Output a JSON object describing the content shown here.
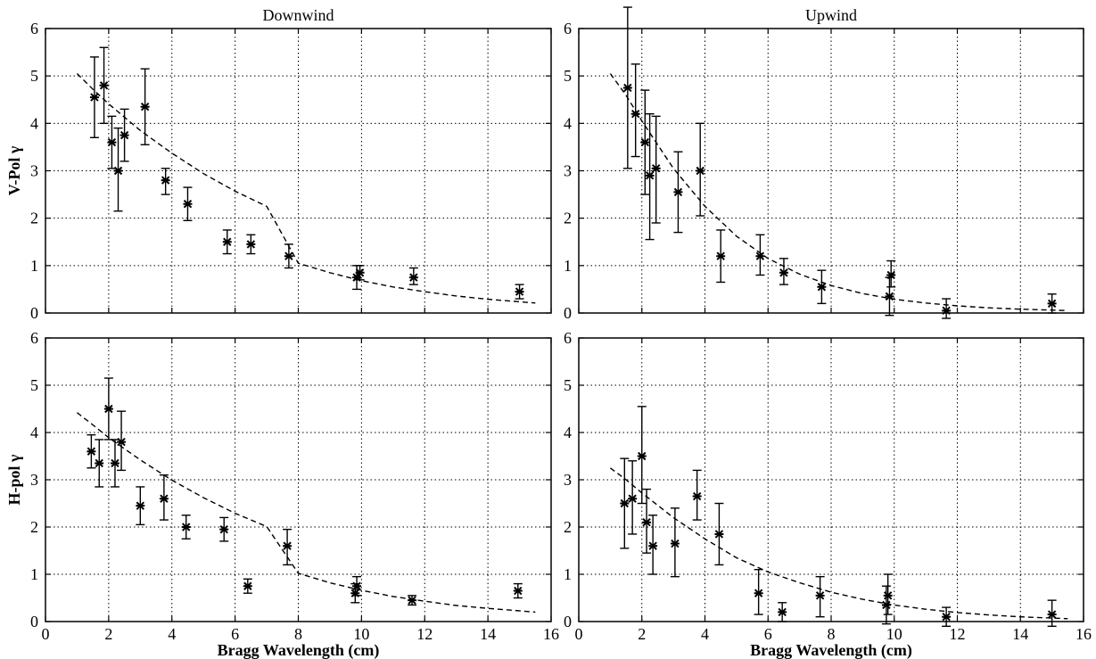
{
  "chart_data": [
    {
      "type": "scatter",
      "title": "Downwind",
      "xlabel": "",
      "ylabel": "V-Pol γ",
      "xlim": [
        0,
        16
      ],
      "ylim": [
        0,
        6
      ],
      "xticks": [
        0,
        2,
        4,
        6,
        8,
        10,
        12,
        14,
        16
      ],
      "yticks": [
        0,
        1,
        2,
        3,
        4,
        5,
        6
      ],
      "show_xticklabels": false,
      "grid": true,
      "points": [
        {
          "x": 1.55,
          "y": 4.55,
          "lo": 3.7,
          "hi": 5.4
        },
        {
          "x": 1.85,
          "y": 4.8,
          "lo": 4.0,
          "hi": 5.6
        },
        {
          "x": 2.1,
          "y": 3.6,
          "lo": 3.05,
          "hi": 4.15
        },
        {
          "x": 2.3,
          "y": 3.0,
          "lo": 2.15,
          "hi": 3.9
        },
        {
          "x": 2.5,
          "y": 3.75,
          "lo": 3.2,
          "hi": 4.3
        },
        {
          "x": 3.15,
          "y": 4.35,
          "lo": 3.55,
          "hi": 5.15
        },
        {
          "x": 3.8,
          "y": 2.8,
          "lo": 2.5,
          "hi": 3.05
        },
        {
          "x": 4.5,
          "y": 2.3,
          "lo": 1.95,
          "hi": 2.65
        },
        {
          "x": 5.75,
          "y": 1.5,
          "lo": 1.25,
          "hi": 1.75
        },
        {
          "x": 6.5,
          "y": 1.45,
          "lo": 1.25,
          "hi": 1.65
        },
        {
          "x": 7.7,
          "y": 1.2,
          "lo": 0.95,
          "hi": 1.45
        },
        {
          "x": 9.85,
          "y": 0.75,
          "lo": 0.5,
          "hi": 1.0
        },
        {
          "x": 9.95,
          "y": 0.85,
          "lo": 0.7,
          "hi": 1.0
        },
        {
          "x": 11.65,
          "y": 0.75,
          "lo": 0.6,
          "hi": 0.95
        },
        {
          "x": 15.0,
          "y": 0.45,
          "lo": 0.3,
          "hi": 0.6
        }
      ],
      "fit": [
        [
          1.0,
          5.05
        ],
        [
          1.5,
          4.72
        ],
        [
          2.0,
          4.41
        ],
        [
          3.0,
          3.85
        ],
        [
          4.0,
          3.37
        ],
        [
          5.0,
          2.94
        ],
        [
          6.0,
          2.57
        ],
        [
          7.0,
          2.25
        ],
        [
          8.0,
          1.05
        ],
        [
          9.0,
          0.85
        ],
        [
          10.0,
          0.68
        ],
        [
          11.0,
          0.55
        ],
        [
          12.0,
          0.45
        ],
        [
          13.0,
          0.36
        ],
        [
          14.0,
          0.29
        ],
        [
          15.5,
          0.21
        ]
      ]
    },
    {
      "type": "scatter",
      "title": "Upwind",
      "xlabel": "",
      "ylabel": "",
      "xlim": [
        0,
        16
      ],
      "ylim": [
        0,
        6
      ],
      "xticks": [
        0,
        2,
        4,
        6,
        8,
        10,
        12,
        14,
        16
      ],
      "yticks": [
        0,
        1,
        2,
        3,
        4,
        5,
        6
      ],
      "show_xticklabels": false,
      "grid": true,
      "points": [
        {
          "x": 1.55,
          "y": 4.75,
          "lo": 3.05,
          "hi": 6.45
        },
        {
          "x": 1.8,
          "y": 4.2,
          "lo": 3.3,
          "hi": 5.25
        },
        {
          "x": 2.1,
          "y": 3.6,
          "lo": 2.5,
          "hi": 4.7
        },
        {
          "x": 2.25,
          "y": 2.9,
          "lo": 1.55,
          "hi": 4.2
        },
        {
          "x": 2.45,
          "y": 3.05,
          "lo": 1.9,
          "hi": 4.15
        },
        {
          "x": 3.15,
          "y": 2.55,
          "lo": 1.7,
          "hi": 3.4
        },
        {
          "x": 3.85,
          "y": 3.0,
          "lo": 2.05,
          "hi": 4.0
        },
        {
          "x": 4.5,
          "y": 1.2,
          "lo": 0.65,
          "hi": 1.75
        },
        {
          "x": 5.75,
          "y": 1.2,
          "lo": 0.8,
          "hi": 1.65
        },
        {
          "x": 6.5,
          "y": 0.85,
          "lo": 0.6,
          "hi": 1.15
        },
        {
          "x": 7.7,
          "y": 0.55,
          "lo": 0.2,
          "hi": 0.9
        },
        {
          "x": 9.85,
          "y": 0.35,
          "lo": -0.05,
          "hi": 0.75
        },
        {
          "x": 9.9,
          "y": 0.8,
          "lo": 0.55,
          "hi": 1.1
        },
        {
          "x": 11.65,
          "y": 0.05,
          "lo": -0.2,
          "hi": 0.3
        },
        {
          "x": 15.0,
          "y": 0.2,
          "lo": 0.0,
          "hi": 0.4
        }
      ],
      "fit": [
        [
          1.0,
          5.05
        ],
        [
          1.5,
          4.59
        ],
        [
          2.0,
          4.05
        ],
        [
          3.0,
          3.05
        ],
        [
          4.0,
          2.25
        ],
        [
          5.0,
          1.62
        ],
        [
          6.0,
          1.15
        ],
        [
          7.0,
          0.82
        ],
        [
          8.0,
          0.58
        ],
        [
          9.0,
          0.41
        ],
        [
          10.0,
          0.29
        ],
        [
          11.0,
          0.21
        ],
        [
          12.0,
          0.15
        ],
        [
          13.0,
          0.11
        ],
        [
          14.0,
          0.08
        ],
        [
          15.5,
          0.05
        ]
      ]
    },
    {
      "type": "scatter",
      "title": "",
      "xlabel": "Bragg Wavelength (cm)",
      "ylabel": "H-pol γ",
      "xlim": [
        0,
        16
      ],
      "ylim": [
        0,
        6
      ],
      "xticks": [
        0,
        2,
        4,
        6,
        8,
        10,
        12,
        14,
        16
      ],
      "yticks": [
        0,
        1,
        2,
        3,
        4,
        5,
        6
      ],
      "show_xticklabels": true,
      "grid": true,
      "points": [
        {
          "x": 1.45,
          "y": 3.6,
          "lo": 3.25,
          "hi": 3.95
        },
        {
          "x": 1.7,
          "y": 3.35,
          "lo": 2.85,
          "hi": 3.85
        },
        {
          "x": 2.0,
          "y": 4.5,
          "lo": 3.85,
          "hi": 5.15
        },
        {
          "x": 2.2,
          "y": 3.35,
          "lo": 2.85,
          "hi": 3.85
        },
        {
          "x": 2.4,
          "y": 3.8,
          "lo": 3.2,
          "hi": 4.45
        },
        {
          "x": 3.0,
          "y": 2.45,
          "lo": 2.05,
          "hi": 2.85
        },
        {
          "x": 3.75,
          "y": 2.6,
          "lo": 2.15,
          "hi": 3.1
        },
        {
          "x": 4.45,
          "y": 2.0,
          "lo": 1.75,
          "hi": 2.25
        },
        {
          "x": 5.65,
          "y": 1.95,
          "lo": 1.7,
          "hi": 2.2
        },
        {
          "x": 6.4,
          "y": 0.75,
          "lo": 0.6,
          "hi": 0.9
        },
        {
          "x": 7.65,
          "y": 1.6,
          "lo": 1.2,
          "hi": 1.95
        },
        {
          "x": 9.8,
          "y": 0.6,
          "lo": 0.4,
          "hi": 0.8
        },
        {
          "x": 9.85,
          "y": 0.75,
          "lo": 0.55,
          "hi": 0.95
        },
        {
          "x": 11.6,
          "y": 0.45,
          "lo": 0.35,
          "hi": 0.55
        },
        {
          "x": 14.95,
          "y": 0.65,
          "lo": 0.5,
          "hi": 0.8
        }
      ],
      "fit": [
        [
          1.0,
          4.42
        ],
        [
          1.5,
          4.16
        ],
        [
          2.0,
          3.89
        ],
        [
          3.0,
          3.42
        ],
        [
          4.0,
          2.99
        ],
        [
          5.0,
          2.62
        ],
        [
          6.0,
          2.29
        ],
        [
          7.0,
          2.01
        ],
        [
          8.0,
          1.02
        ],
        [
          9.0,
          0.82
        ],
        [
          10.0,
          0.66
        ],
        [
          11.0,
          0.53
        ],
        [
          12.0,
          0.43
        ],
        [
          13.0,
          0.34
        ],
        [
          14.0,
          0.28
        ],
        [
          15.5,
          0.2
        ]
      ]
    },
    {
      "type": "scatter",
      "title": "",
      "xlabel": "Bragg Wavelength (cm)",
      "ylabel": "",
      "xlim": [
        0,
        16
      ],
      "ylim": [
        0,
        6
      ],
      "xticks": [
        0,
        2,
        4,
        6,
        8,
        10,
        12,
        14,
        16
      ],
      "yticks": [
        0,
        1,
        2,
        3,
        4,
        5,
        6
      ],
      "show_xticklabels": true,
      "grid": true,
      "points": [
        {
          "x": 1.45,
          "y": 2.5,
          "lo": 1.55,
          "hi": 3.45
        },
        {
          "x": 1.7,
          "y": 2.6,
          "lo": 1.85,
          "hi": 3.4
        },
        {
          "x": 2.0,
          "y": 3.5,
          "lo": 2.5,
          "hi": 4.55
        },
        {
          "x": 2.15,
          "y": 2.1,
          "lo": 1.45,
          "hi": 2.8
        },
        {
          "x": 2.35,
          "y": 1.6,
          "lo": 1.0,
          "hi": 2.25
        },
        {
          "x": 3.05,
          "y": 1.65,
          "lo": 0.95,
          "hi": 2.4
        },
        {
          "x": 3.75,
          "y": 2.65,
          "lo": 2.15,
          "hi": 3.2
        },
        {
          "x": 4.45,
          "y": 1.85,
          "lo": 1.2,
          "hi": 2.5
        },
        {
          "x": 5.7,
          "y": 0.6,
          "lo": 0.15,
          "hi": 1.1
        },
        {
          "x": 6.45,
          "y": 0.2,
          "lo": 0.0,
          "hi": 0.4
        },
        {
          "x": 7.65,
          "y": 0.55,
          "lo": 0.1,
          "hi": 0.95
        },
        {
          "x": 9.75,
          "y": 0.35,
          "lo": -0.05,
          "hi": 0.75
        },
        {
          "x": 9.8,
          "y": 0.55,
          "lo": 0.15,
          "hi": 1.0
        },
        {
          "x": 11.65,
          "y": 0.1,
          "lo": -0.1,
          "hi": 0.3
        },
        {
          "x": 15.0,
          "y": 0.15,
          "lo": -0.1,
          "hi": 0.45
        }
      ],
      "fit": [
        [
          1.0,
          3.25
        ],
        [
          1.5,
          3.0
        ],
        [
          2.0,
          2.72
        ],
        [
          3.0,
          2.2
        ],
        [
          4.0,
          1.75
        ],
        [
          5.0,
          1.35
        ],
        [
          6.0,
          1.05
        ],
        [
          7.0,
          0.82
        ],
        [
          8.0,
          0.62
        ],
        [
          9.0,
          0.47
        ],
        [
          10.0,
          0.35
        ],
        [
          11.0,
          0.26
        ],
        [
          12.0,
          0.19
        ],
        [
          13.0,
          0.14
        ],
        [
          14.0,
          0.1
        ],
        [
          15.5,
          0.06
        ]
      ]
    }
  ]
}
